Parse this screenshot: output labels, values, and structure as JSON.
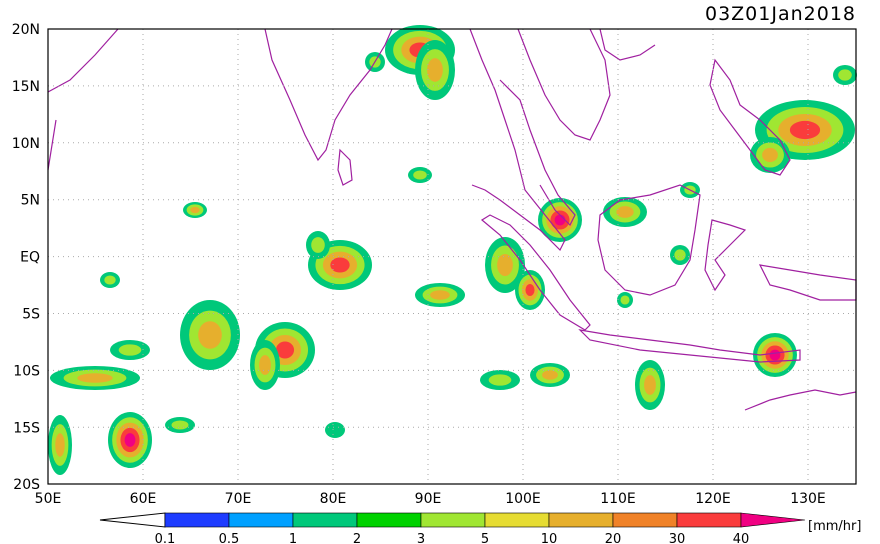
{
  "title": "03Z01Jan2018",
  "lat_labels": [
    "20N",
    "15N",
    "10N",
    "5N",
    "EQ",
    "5S",
    "10S",
    "15S",
    "20S"
  ],
  "lon_labels": [
    "50E",
    "60E",
    "70E",
    "80E",
    "90E",
    "100E",
    "110E",
    "120E",
    "130E"
  ],
  "colorbar": {
    "labels": [
      "0.1",
      "0.5",
      "1",
      "2",
      "3",
      "5",
      "10",
      "20",
      "30",
      "40"
    ],
    "unit": "[mm/hr]"
  }
}
